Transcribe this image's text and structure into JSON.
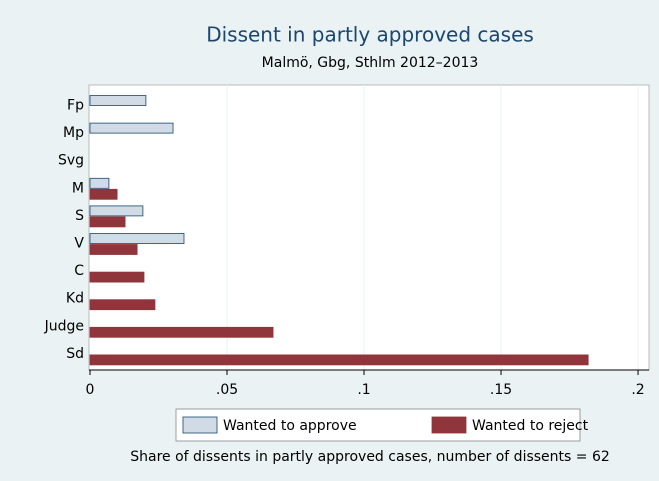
{
  "chart_data": {
    "type": "hbar",
    "title": "Dissent in partly approved cases",
    "subtitle": "Malmö, Gbg, Sthlm 2012–2013",
    "note": "Share of dissents in partly approved cases, number of dissents = 62",
    "categories": [
      "Fp",
      "Mp",
      "Svg",
      "M",
      "S",
      "V",
      "C",
      "Kd",
      "Judge",
      "Sd"
    ],
    "series": [
      {
        "name": "Wanted to approve",
        "color": "#d0dbe6",
        "edge": "#1a476f",
        "values": [
          0.0204,
          0.0303,
          0,
          0.0069,
          0.0193,
          0.0343,
          0,
          0,
          0,
          0
        ]
      },
      {
        "name": "Wanted to reject",
        "color": "#90353b",
        "edge": "#90353b",
        "values": [
          0,
          0,
          0,
          0.0099,
          0.0128,
          0.0172,
          0.0197,
          0.0237,
          0.0668,
          0.1818
        ]
      }
    ],
    "xlim": [
      0,
      0.204
    ],
    "xticks": [
      0,
      {
        "value": 0.05,
        "label": ".05"
      },
      {
        "value": 0.1,
        "label": ".1"
      },
      {
        "value": 0.15,
        "label": ".15"
      },
      {
        "value": 0.2,
        "label": ".2"
      }
    ],
    "grid": true
  }
}
